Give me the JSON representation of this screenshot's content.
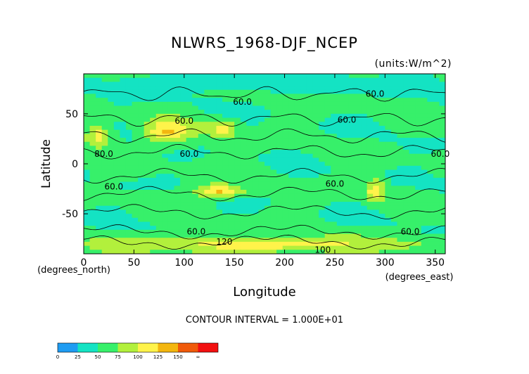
{
  "chart_data": {
    "type": "heatmap",
    "title": "NLWRS_1968-DJF_NCEP",
    "units": "(units:W/m^2)",
    "xlabel": "Longitude",
    "ylabel": "Latitude",
    "x_unit_label": "(degrees_east)",
    "y_unit_label": "(degrees_north)",
    "xlim": [
      0,
      360
    ],
    "ylim": [
      -90,
      90
    ],
    "x_ticks": [
      0,
      50,
      100,
      150,
      200,
      250,
      300,
      350
    ],
    "y_ticks": [
      50,
      0,
      -50
    ],
    "contour_interval_text": "CONTOUR INTERVAL = 1.000E+01",
    "contour_labels": [
      {
        "text": "60.0",
        "lon": 158,
        "lat": 62
      },
      {
        "text": "60.0",
        "lon": 100,
        "lat": 43
      },
      {
        "text": "60.0",
        "lon": 262,
        "lat": 44
      },
      {
        "text": "60.0",
        "lon": 290,
        "lat": 70
      },
      {
        "text": "60.0",
        "lon": 105,
        "lat": 10
      },
      {
        "text": "80.0",
        "lon": 20,
        "lat": 10
      },
      {
        "text": "60.0",
        "lon": 355,
        "lat": 10
      },
      {
        "text": "60.0",
        "lon": 30,
        "lat": -23
      },
      {
        "text": "60.0",
        "lon": 250,
        "lat": -20
      },
      {
        "text": "60.0",
        "lon": 112,
        "lat": -68
      },
      {
        "text": "60.0",
        "lon": 325,
        "lat": -68
      },
      {
        "text": "100",
        "lon": 238,
        "lat": -86
      },
      {
        "text": "120",
        "lon": 140,
        "lat": -78
      }
    ],
    "colorbar": {
      "levels": [
        "0",
        "25",
        "50",
        "75",
        "100",
        "125",
        "150",
        "∞"
      ],
      "colors": [
        "#1f9cf2",
        "#14e3c3",
        "#37f06a",
        "#b2f03c",
        "#fff34a",
        "#f3b60f",
        "#f05a0a",
        "#f21010"
      ]
    },
    "field_description_regions": [
      {
        "lon": [
          0,
          360
        ],
        "lat": [
          -25,
          25
        ],
        "value": 50
      },
      {
        "lon": [
          0,
          30
        ],
        "lat": [
          15,
          40
        ],
        "value": 110
      },
      {
        "lon": [
          60,
          110
        ],
        "lat": [
          20,
          45
        ],
        "value": 130
      },
      {
        "lon": [
          120,
          155
        ],
        "lat": [
          25,
          45
        ],
        "value": 110
      },
      {
        "lon": [
          110,
          160
        ],
        "lat": [
          -35,
          -20
        ],
        "value": 130
      },
      {
        "lon": [
          280,
          300
        ],
        "lat": [
          -40,
          -15
        ],
        "value": 120
      },
      {
        "lon": [
          0,
          360
        ],
        "lat": [
          -90,
          -72
        ],
        "value": 110
      },
      {
        "lon": [
          0,
          360
        ],
        "lat": [
          72,
          90
        ],
        "value": 25
      }
    ]
  }
}
